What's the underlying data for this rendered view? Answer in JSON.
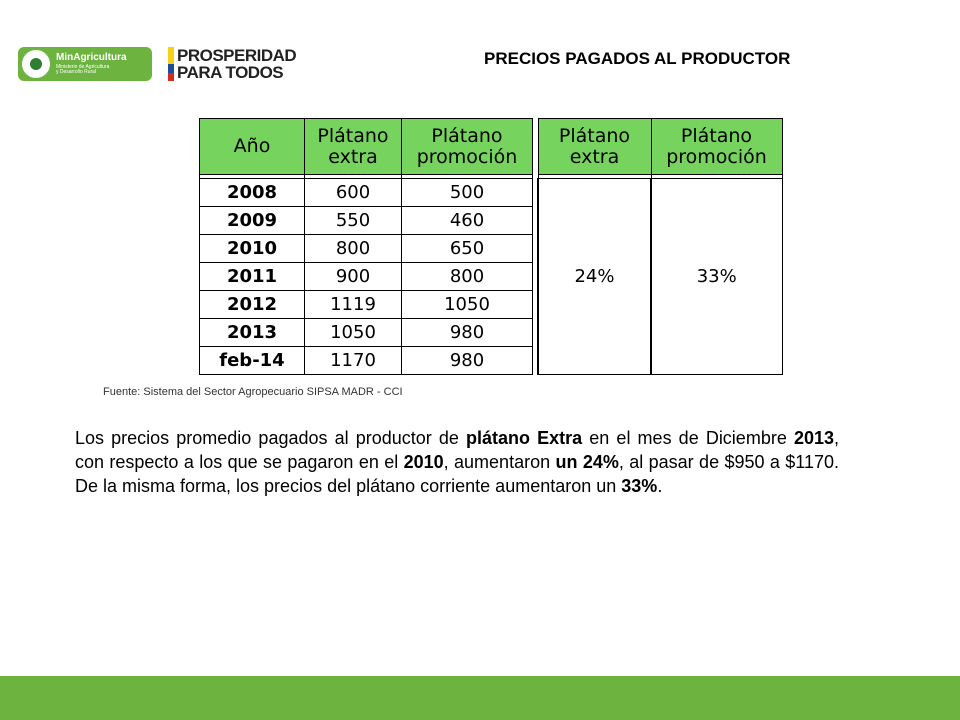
{
  "logos": {
    "ministry": {
      "name": "MinAgricultura",
      "subtitle_line1": "Ministerio de Agricultura",
      "subtitle_line2": "y Desarrollo Rural"
    },
    "campaign": {
      "line1": "PROSPERIDAD",
      "line2": "PARA TODOS"
    }
  },
  "title": "PRECIOS PAGADOS AL PRODUCTOR",
  "table": {
    "headers": [
      {
        "line1": "Año",
        "line2": ""
      },
      {
        "line1": "Plátano",
        "line2": "extra"
      },
      {
        "line1": "Plátano",
        "line2": "promoción"
      },
      {
        "line1": "Plátano",
        "line2": "extra"
      },
      {
        "line1": "Plátano",
        "line2": "promoción"
      }
    ],
    "rows": [
      {
        "year": "2008",
        "extra": "600",
        "promocion": "500"
      },
      {
        "year": "2009",
        "extra": "550",
        "promocion": "460"
      },
      {
        "year": "2010",
        "extra": "800",
        "promocion": "650"
      },
      {
        "year": "2011",
        "extra": "900",
        "promocion": "800"
      },
      {
        "year": "2012",
        "extra": "1119",
        "promocion": "1050"
      },
      {
        "year": "2013",
        "extra": "1050",
        "promocion": "980"
      },
      {
        "year": "feb-14",
        "extra": "1170",
        "promocion": "980"
      }
    ],
    "pct_extra": "24%",
    "pct_promocion": "33%"
  },
  "source": "Fuente: Sistema del Sector  Agropecuario SIPSA  MADR - CCI",
  "paragraph": {
    "p1": "Los precios promedio pagados al productor de ",
    "b1": "plátano Extra",
    "p2": " en el mes de Diciembre ",
    "b2": "2013",
    "p3": ", con respecto a los que se pagaron en el ",
    "b3": "2010",
    "p4": ", aumentaron ",
    "b4": "un 24%",
    "p5": ", al pasar de $950 a $1170. De la misma forma, los precios del plátano corriente aumentaron un ",
    "b5": "33%",
    "p6": "."
  },
  "colors": {
    "header_green": "#76d35d",
    "footer_green": "#6db33f"
  }
}
